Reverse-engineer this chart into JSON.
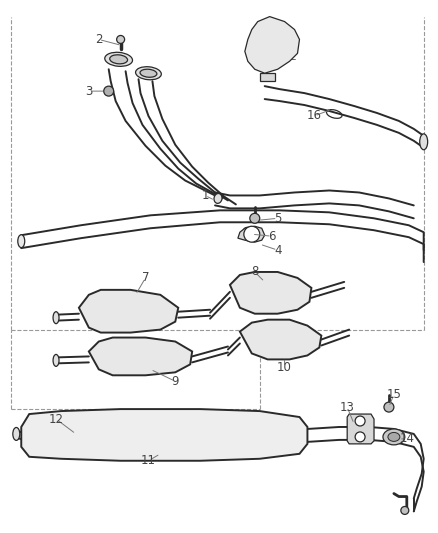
{
  "background_color": "#ffffff",
  "line_color": "#2a2a2a",
  "label_color": "#444444",
  "dashed_color": "#999999",
  "figsize": [
    4.38,
    5.33
  ],
  "dpi": 100,
  "lw_main": 1.4,
  "lw_thin": 0.9,
  "lw_dashed": 0.8
}
